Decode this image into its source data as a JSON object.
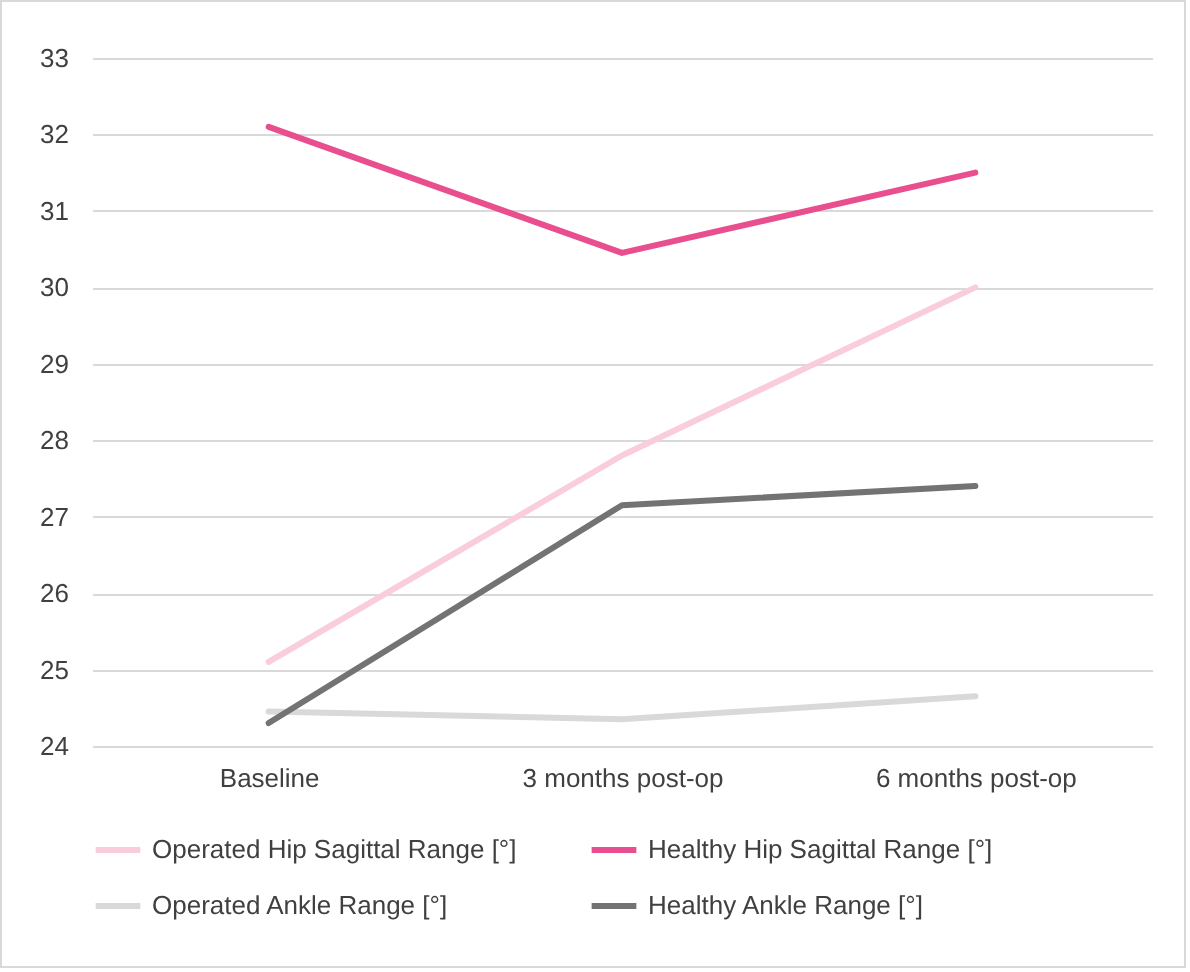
{
  "chart_data": {
    "type": "line",
    "categories": [
      "Baseline",
      "3 months post-op",
      "6 months post-op"
    ],
    "series": [
      {
        "name": "Operated Hip Sagittal Range [°]",
        "color": "#f9cddc",
        "values": [
          25.1,
          27.8,
          30.0
        ]
      },
      {
        "name": "Healthy Hip Sagittal Range [°]",
        "color": "#e94e8f",
        "values": [
          32.1,
          30.45,
          31.5
        ]
      },
      {
        "name": "Operated Ankle Range [°]",
        "color": "#d9d9d9",
        "values": [
          24.45,
          24.35,
          24.65
        ]
      },
      {
        "name": "Healthy Ankle Range [°]",
        "color": "#737373",
        "values": [
          24.3,
          27.15,
          27.4
        ]
      }
    ],
    "ylim": [
      24,
      33
    ],
    "yticks": [
      24,
      25,
      26,
      27,
      28,
      29,
      30,
      31,
      32,
      33
    ],
    "grid": "y",
    "legend": "bottom",
    "marker": "none",
    "line_style": "solid"
  }
}
